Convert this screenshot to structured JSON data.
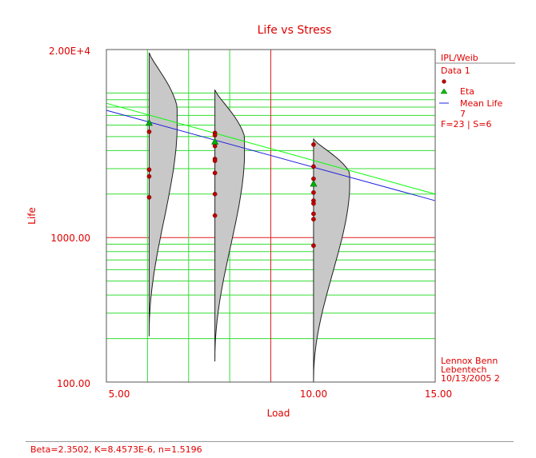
{
  "chart_data": {
    "type": "scatter",
    "title": "Life vs Stress",
    "xlabel": "Load",
    "ylabel": "Life",
    "xlim": [
      5,
      15
    ],
    "ylim": [
      100,
      20000
    ],
    "yscale": "log",
    "x_ticks": [
      "5.00",
      "10.00",
      "15.00"
    ],
    "y_ticks": [
      "100.00",
      "1000.00",
      "2.00E+4"
    ],
    "grid": true,
    "legend_position": "right",
    "legend": {
      "model": "IPL/Weib",
      "dataset": "Data 1",
      "items": [
        "Eta",
        "Mean Life",
        "7"
      ],
      "counts": "F=23 | S=6"
    },
    "info": {
      "user": "Lennox Benn",
      "company": "Lebentech",
      "date": "10/13/2005 2"
    },
    "series": [
      {
        "name": "Data 1",
        "marker": "circle",
        "color": "#c00000",
        "points": [
          [
            6.3,
            5400
          ],
          [
            6.3,
            2950
          ],
          [
            6.3,
            2650
          ],
          [
            6.3,
            1900
          ],
          [
            8.3,
            5300
          ],
          [
            8.3,
            5100
          ],
          [
            8.3,
            4300
          ],
          [
            8.3,
            3500
          ],
          [
            8.3,
            3400
          ],
          [
            8.3,
            2800
          ],
          [
            8.3,
            2000
          ],
          [
            8.3,
            1420
          ],
          [
            11.3,
            4400
          ],
          [
            11.3,
            3100
          ],
          [
            11.3,
            2550
          ],
          [
            11.3,
            2050
          ],
          [
            11.3,
            1800
          ],
          [
            11.3,
            1720
          ],
          [
            11.3,
            1460
          ],
          [
            11.3,
            1340
          ],
          [
            11.3,
            880
          ]
        ]
      },
      {
        "name": "Eta",
        "marker": "triangle",
        "color": "#00b000",
        "points": [
          [
            6.3,
            6200
          ],
          [
            8.3,
            4600
          ],
          [
            11.3,
            2350
          ]
        ]
      }
    ],
    "lines": [
      {
        "name": "Eta",
        "color": "#00ff00",
        "x": [
          5,
          15
        ],
        "y": [
          8500,
          2000
        ]
      },
      {
        "name": "Mean Life",
        "color": "#2020e0",
        "x": [
          5,
          15
        ],
        "y": [
          7600,
          1800
        ]
      }
    ],
    "distributions": [
      {
        "x": 6.3,
        "mode": 5500,
        "y_top": 19000,
        "y_bottom": 210,
        "width": 0.85
      },
      {
        "x": 8.3,
        "mode": 3600,
        "y_top": 10500,
        "y_bottom": 140,
        "width": 0.9
      },
      {
        "x": 11.3,
        "mode": 2200,
        "y_top": 4800,
        "y_bottom": 100,
        "width": 1.1
      }
    ],
    "footer": "Beta=2.3502, K=8.4573E-6, n=1.5196"
  }
}
